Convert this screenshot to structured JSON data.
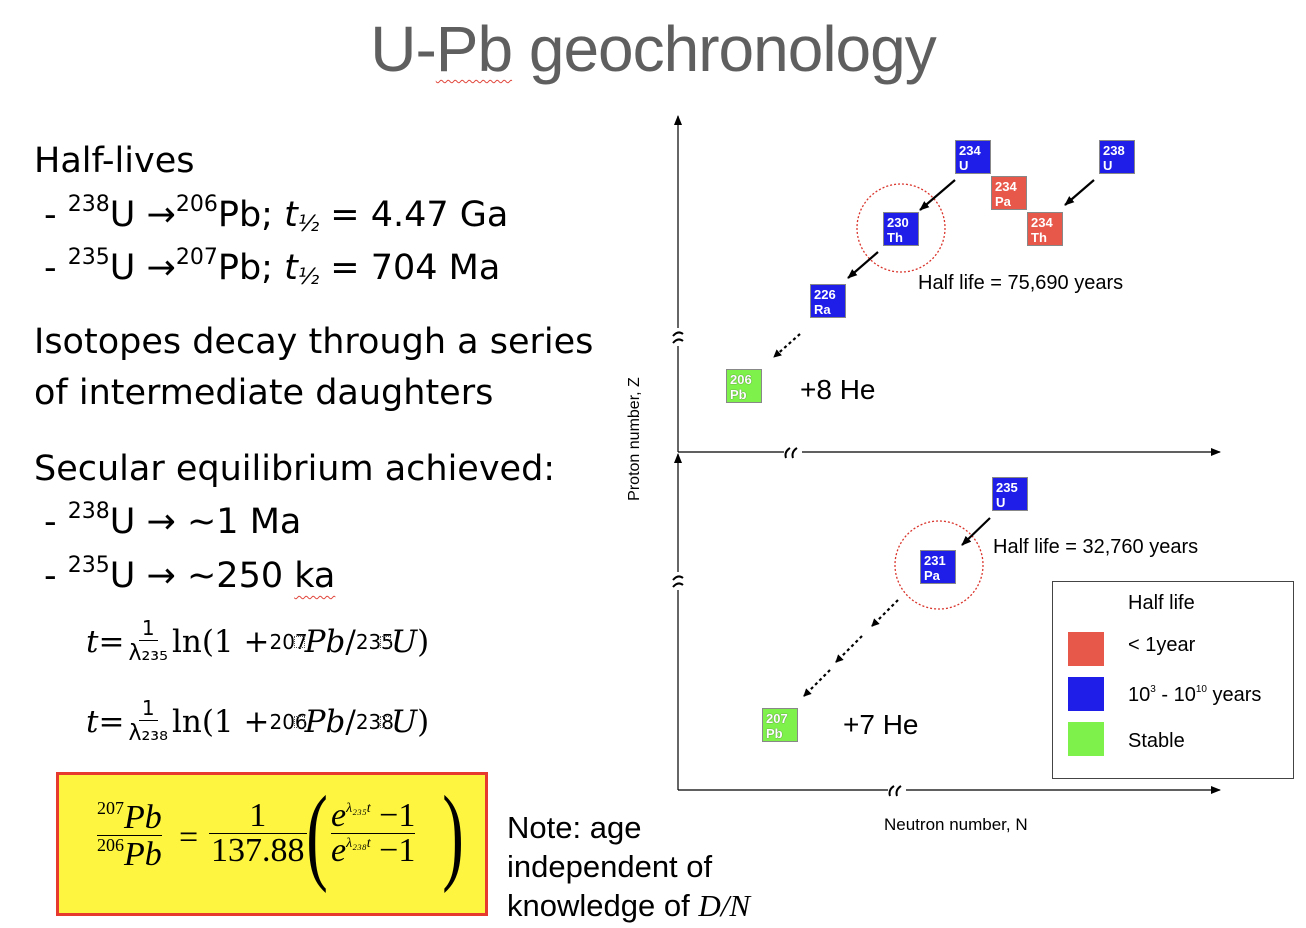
{
  "title_pre": "U-",
  "title_underlined": "Pb",
  "title_post": " geochronology",
  "half_lives": {
    "heading": "Half-lives",
    "line1": {
      "dash": "- ",
      "mass_parent": "238",
      "parent": "U ",
      "arrow": "→",
      "mass_daughter": "206",
      "daughter": "Pb;  ",
      "t": "t",
      "half": "½",
      "eq": " = 4.47 Ga"
    },
    "line2": {
      "dash": "- ",
      "mass_parent": "235",
      "parent": "U ",
      "arrow": "→",
      "mass_daughter": "207",
      "daughter": "Pb; ",
      "t": "t",
      "half": "½",
      "eq": " = 704 Ma"
    }
  },
  "decay_text": {
    "line1": "Isotopes decay through a series",
    "line2": "of intermediate daughters"
  },
  "secular": {
    "heading": "Secular equilibrium achieved:",
    "line1": {
      "dash": "- ",
      "mass": "238",
      "el": "U ",
      "arrow": "→",
      "val": " ~1 Ma"
    },
    "line2": {
      "dash": "- ",
      "mass": "235",
      "el": "U ",
      "arrow": "→",
      "val_a": " ~250 ",
      "val_b": "ka"
    }
  },
  "formulas": {
    "f1": {
      "t": "t",
      "eq": " = ",
      "num": "1",
      "den": "λ₂₃₅",
      "ln": " ln(1 + ",
      "m1": "207",
      "e1": "Pb",
      "slash": "/",
      "m2": "235",
      "e2": "U",
      "close": ")"
    },
    "f2": {
      "t": "t",
      "eq": " = ",
      "num": "1",
      "den": "λ₂₃₈",
      "ln": " ln(1 + ",
      "m1": "206",
      "e1": "Pb",
      "slash": "/",
      "m2": "238",
      "e2": "U",
      "close": ")"
    }
  },
  "box_formula": {
    "lhs_num_mass": "207",
    "lhs_num_el": "Pb",
    "lhs_den_mass": "206",
    "lhs_den_el": "Pb",
    "eq": "=",
    "one": "1",
    "ratio": "137.88",
    "rhs_num_e": "e",
    "rhs_num_exp": "λ₂₃₅t",
    "rhs_num_tail": " −1",
    "rhs_den_e": "e",
    "rhs_den_exp": "λ₂₃₈t",
    "rhs_den_tail": " −1"
  },
  "note": {
    "line1": "Note: age",
    "line2": "independent of",
    "line3_a": "knowledge of ",
    "line3_b": "D/N"
  },
  "diagram": {
    "y_axis_label": "Proton number, Z",
    "x_axis_label": "Neutron number, N",
    "break_symbol": "≈",
    "isotopes": [
      {
        "id": "u234",
        "mass": "234",
        "el": "U",
        "kind": "blue"
      },
      {
        "id": "u238",
        "mass": "238",
        "el": "U",
        "kind": "blue"
      },
      {
        "id": "pa234",
        "mass": "234",
        "el": "Pa",
        "kind": "red"
      },
      {
        "id": "th234",
        "mass": "234",
        "el": "Th",
        "kind": "red"
      },
      {
        "id": "th230",
        "mass": "230",
        "el": "Th",
        "kind": "blue"
      },
      {
        "id": "ra226",
        "mass": "226",
        "el": "Ra",
        "kind": "blue"
      },
      {
        "id": "pb206",
        "mass": "206",
        "el": "Pb",
        "kind": "green"
      },
      {
        "id": "u235",
        "mass": "235",
        "el": "U",
        "kind": "blue"
      },
      {
        "id": "pa231",
        "mass": "231",
        "el": "Pa",
        "kind": "blue"
      },
      {
        "id": "pb207",
        "mass": "207",
        "el": "Pb",
        "kind": "green"
      }
    ],
    "half_life_upper": "Half life = 75,690 years",
    "half_life_lower": "Half life = 32,760 years",
    "he_upper": "+8 He",
    "he_lower": "+7 He"
  },
  "legend": {
    "title": "Half life",
    "item1": "< 1year",
    "item2_base": "10",
    "item2_exp1": "3",
    "item2_mid": " - 10",
    "item2_exp2": "10",
    "item2_tail": " years",
    "item3": "Stable"
  },
  "colors": {
    "blue": "#1e1ee8",
    "red": "#e7574a",
    "green": "#7ef24a",
    "box_fill": "#fdf53f",
    "box_border": "#e53a2d",
    "title": "#5f5f5f"
  }
}
